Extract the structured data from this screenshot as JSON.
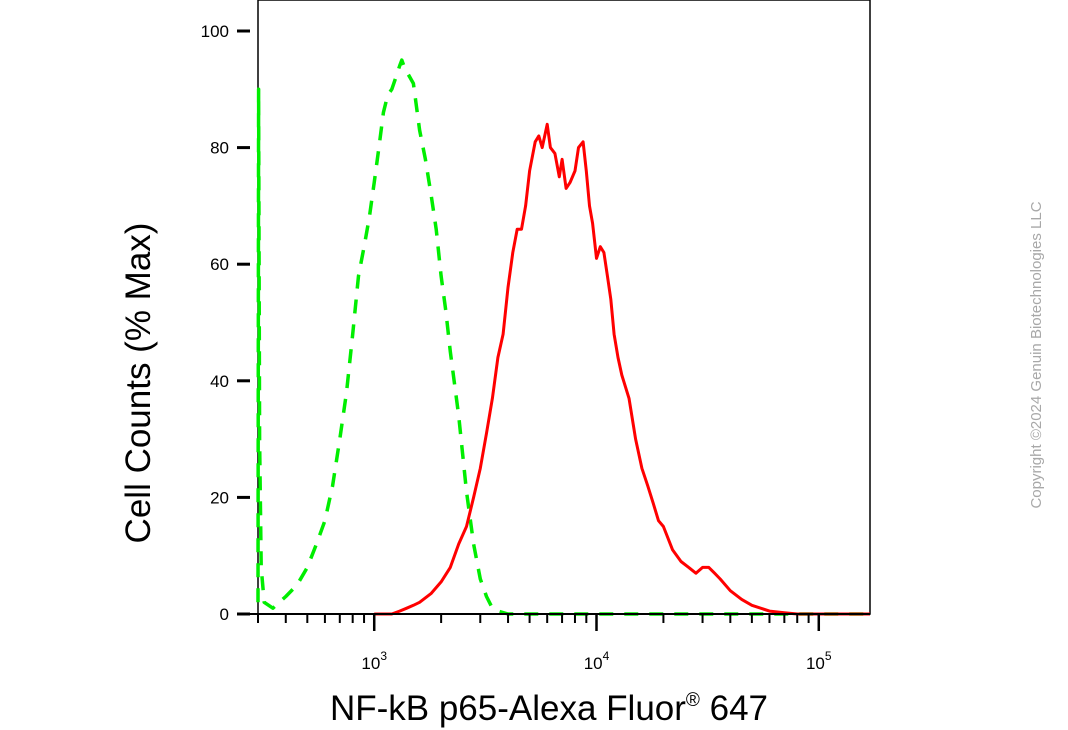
{
  "chart_data": {
    "type": "line",
    "xscale": "log",
    "xlabel": "NF-kB p65-Alexa Fluor",
    "xlabel_sup": "®",
    "xlabel_suffix": " 647",
    "ylabel": "Cell Counts (% Max)",
    "xlim": [
      300,
      170000
    ],
    "ylim": [
      0,
      105
    ],
    "y_ticks": [
      0,
      20,
      40,
      60,
      80,
      100
    ],
    "x_major_ticks": [
      {
        "value": 1000,
        "base": "10",
        "exp": "3"
      },
      {
        "value": 10000,
        "base": "10",
        "exp": "4"
      },
      {
        "value": 100000,
        "base": "10",
        "exp": "5"
      }
    ],
    "series": [
      {
        "color": "#00ee00",
        "style": "dashed",
        "x": [
          300,
          302,
          305,
          310,
          320,
          350,
          400,
          450,
          500,
          550,
          600,
          650,
          700,
          750,
          800,
          850,
          900,
          950,
          1000,
          1050,
          1100,
          1150,
          1200,
          1250,
          1300,
          1330,
          1360,
          1400,
          1450,
          1500,
          1550,
          1600,
          1700,
          1800,
          1900,
          2000,
          2100,
          2200,
          2400,
          2600,
          2800,
          3000,
          3200,
          3400,
          3600,
          4000,
          5000,
          10000,
          100000,
          170000
        ],
        "values": [
          2,
          90,
          30,
          8,
          2,
          1,
          3,
          5,
          8,
          12,
          16,
          22,
          30,
          38,
          48,
          58,
          63,
          68,
          74,
          80,
          86,
          89,
          90,
          92,
          94,
          95,
          94,
          93,
          92,
          91,
          87,
          83,
          78,
          72,
          66,
          58,
          52,
          45,
          34,
          21,
          12,
          6,
          3,
          1,
          0.5,
          0,
          0,
          0,
          0,
          0
        ]
      },
      {
        "color": "#ff0000",
        "style": "solid",
        "x": [
          1000,
          1200,
          1300,
          1400,
          1500,
          1600,
          1800,
          2000,
          2200,
          2400,
          2600,
          2800,
          3000,
          3200,
          3400,
          3600,
          3800,
          4000,
          4200,
          4400,
          4600,
          4800,
          5000,
          5300,
          5500,
          5700,
          6000,
          6200,
          6500,
          6800,
          7000,
          7300,
          7600,
          8000,
          8300,
          8700,
          9000,
          9300,
          9600,
          10000,
          10400,
          10800,
          11200,
          11600,
          12000,
          12500,
          13000,
          14000,
          15000,
          16000,
          17000,
          18000,
          19000,
          20000,
          22000,
          24000,
          26000,
          28000,
          30000,
          32000,
          34000,
          36000,
          40000,
          45000,
          50000,
          60000,
          70000,
          80000,
          100000,
          170000
        ],
        "values": [
          0,
          0,
          0.5,
          1,
          1.5,
          2,
          3.5,
          5.5,
          8,
          12,
          15,
          20,
          25,
          31,
          37,
          44,
          48,
          56,
          62,
          66,
          66,
          70,
          76,
          81,
          82,
          80,
          84,
          80,
          79,
          75,
          78,
          73,
          74,
          76,
          80,
          81,
          76,
          70,
          67,
          61,
          63,
          62,
          58,
          54,
          48,
          44,
          41,
          37,
          30,
          25,
          22,
          19,
          16,
          15,
          11,
          9,
          8,
          7,
          8,
          8,
          7,
          6,
          4,
          2.5,
          1.5,
          0.5,
          0.2,
          0,
          0,
          0
        ]
      }
    ]
  },
  "watermark": "Copyright ©2024 Genuin Biotechnologies LLC"
}
